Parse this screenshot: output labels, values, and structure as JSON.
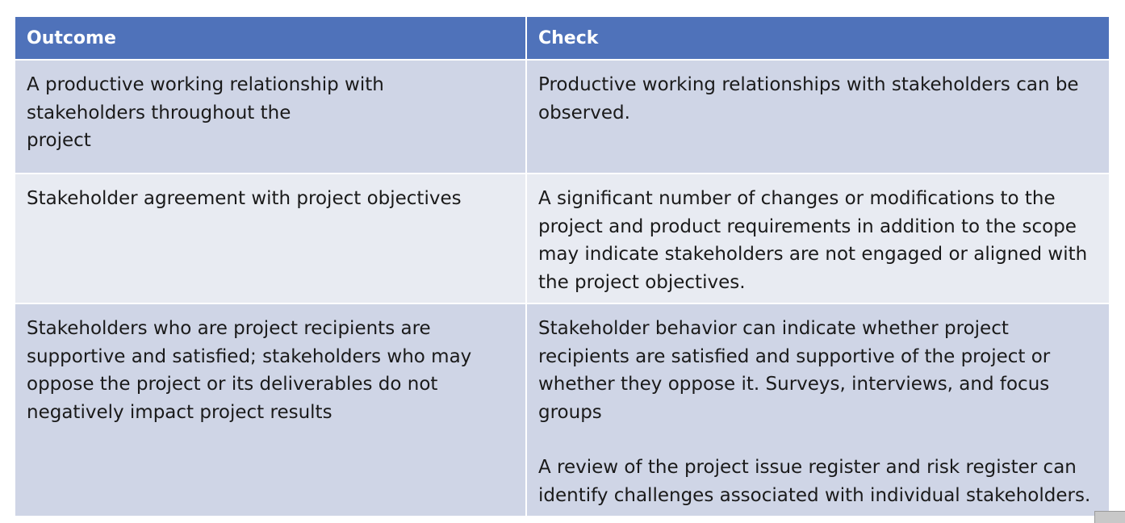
{
  "table": {
    "headers": [
      "Outcome",
      "Check"
    ],
    "rows": [
      {
        "outcome_lines": [
          "A productive working relationship with",
          "stakeholders throughout the",
          "project"
        ],
        "check_paragraphs": [
          [
            "Productive working relationships with stakeholders can be",
            "observed."
          ]
        ]
      },
      {
        "outcome_lines": [
          "Stakeholder agreement with project objectives"
        ],
        "check_paragraphs": [
          [
            "A significant number of changes or modifications to the",
            "project and product requirements in addition to the scope",
            "may indicate stakeholders are not engaged or aligned with",
            "the project objectives."
          ]
        ]
      },
      {
        "outcome_lines": [
          "Stakeholders who are project recipients are",
          "supportive and satisfied; stakeholders who may",
          "oppose the project or its deliverables do not",
          "negatively impact project results"
        ],
        "check_paragraphs": [
          [
            "Stakeholder behavior can indicate whether project",
            "recipients are satisfied and supportive of the project or",
            "whether they oppose it. Surveys, interviews, and focus",
            "groups"
          ],
          [
            "A review of the project issue register and risk register can",
            "identify challenges associated with individual stakeholders."
          ]
        ]
      }
    ]
  },
  "colors": {
    "header_bg": "#4f72ba",
    "row_dark_bg": "#cfd5e6",
    "row_light_bg": "#e8ebf2"
  }
}
